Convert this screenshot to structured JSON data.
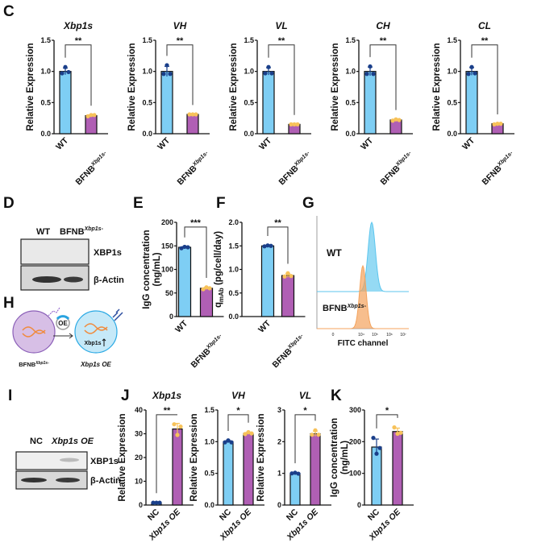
{
  "colors": {
    "wt_bar": "#7ecef4",
    "mut_bar": "#b05fb4",
    "wt_point": "#1a3f8a",
    "mut_point": "#f7c25a",
    "flow_wt": "#5cc6ee",
    "flow_mut": "#f4a35c"
  },
  "panels": {
    "C": "C",
    "D": "D",
    "E": "E",
    "F": "F",
    "G": "G",
    "H": "H",
    "I": "I",
    "J": "J",
    "K": "K"
  },
  "blot_D": {
    "lanes": [
      "WT",
      "BFNB"
    ],
    "lane2_sup": "Xbp1s-",
    "bands": [
      "XBP1s",
      "β-Actin"
    ]
  },
  "blot_I": {
    "lanes": [
      "NC",
      "Xbp1s OE"
    ],
    "bands": [
      "XBP1s",
      "β-Actin"
    ]
  },
  "diagram_H": {
    "left_label": "BFNB",
    "left_sup": "Xbp1s-",
    "right_label": "Xbp1s OE",
    "oe_label": "OE",
    "gene_label": "Xbp1s"
  },
  "flow_G": {
    "labels": [
      "WT",
      "BFNB"
    ],
    "sup": "Xbp1s-",
    "xlabel": "FITC channel",
    "ticks": [
      "0",
      "10⁴",
      "10⁵",
      "10⁶",
      "10⁷"
    ]
  },
  "chart_data": [
    {
      "id": "C1",
      "type": "bar",
      "title": "Xbp1s",
      "ylabel": "Relative Expression",
      "ylim": [
        0,
        1.5
      ],
      "yticks": [
        "0.0",
        "0.5",
        "1.0",
        "1.5"
      ],
      "categories": [
        {
          "label": "WT"
        },
        {
          "label": "BFNB",
          "sup": "Xbp1s-"
        }
      ],
      "values": [
        1.0,
        0.29
      ],
      "points": [
        [
          0.97,
          1.07,
          0.99
        ],
        [
          0.28,
          0.3,
          0.3
        ]
      ],
      "significance": "**"
    },
    {
      "id": "C2",
      "type": "bar",
      "title": "VH",
      "ylabel": "Relative Expression",
      "ylim": [
        0,
        1.5
      ],
      "yticks": [
        "0.0",
        "0.5",
        "1.0",
        "1.5"
      ],
      "categories": [
        {
          "label": "WT"
        },
        {
          "label": "BFNB",
          "sup": "Xbp1s-"
        }
      ],
      "values": [
        1.0,
        0.31
      ],
      "points": [
        [
          0.96,
          1.1,
          0.96
        ],
        [
          0.31,
          0.31,
          0.31
        ]
      ],
      "significance": "**"
    },
    {
      "id": "C3",
      "type": "bar",
      "title": "VL",
      "ylabel": "Relative Expression",
      "ylim": [
        0,
        1.5
      ],
      "yticks": [
        "0.0",
        "0.5",
        "1.0",
        "1.5"
      ],
      "categories": [
        {
          "label": "WT"
        },
        {
          "label": "BFNB",
          "sup": "Xbp1s-"
        }
      ],
      "values": [
        1.0,
        0.15
      ],
      "points": [
        [
          0.97,
          1.07,
          0.97
        ],
        [
          0.15,
          0.15,
          0.15
        ]
      ],
      "significance": "**"
    },
    {
      "id": "C4",
      "type": "bar",
      "title": "CH",
      "ylabel": "Relative Expression",
      "ylim": [
        0,
        1.5
      ],
      "yticks": [
        "0.0",
        "0.5",
        "1.0",
        "1.5"
      ],
      "categories": [
        {
          "label": "WT"
        },
        {
          "label": "BFNB",
          "sup": "Xbp1s-"
        }
      ],
      "values": [
        1.0,
        0.22
      ],
      "points": [
        [
          0.96,
          1.08,
          0.96
        ],
        [
          0.21,
          0.23,
          0.22
        ]
      ],
      "significance": "**"
    },
    {
      "id": "C5",
      "type": "bar",
      "title": "CL",
      "ylabel": "Relative Expression",
      "ylim": [
        0,
        1.5
      ],
      "yticks": [
        "0.0",
        "0.5",
        "1.0",
        "1.5"
      ],
      "categories": [
        {
          "label": "WT"
        },
        {
          "label": "BFNB",
          "sup": "Xbp1s-"
        }
      ],
      "values": [
        1.0,
        0.16
      ],
      "points": [
        [
          0.96,
          1.07,
          0.97
        ],
        [
          0.15,
          0.16,
          0.16
        ]
      ],
      "significance": "**"
    },
    {
      "id": "E",
      "type": "bar",
      "title": "",
      "ylabel": "IgG concentration",
      "ylabel2": "(ng/mL)",
      "ylim": [
        0,
        200
      ],
      "yticks": [
        "0",
        "50",
        "100",
        "150",
        "200"
      ],
      "categories": [
        {
          "label": "WT"
        },
        {
          "label": "BFNB",
          "sup": "Xbp1s-"
        }
      ],
      "values": [
        147,
        60
      ],
      "points": [
        [
          145,
          148,
          147
        ],
        [
          58,
          62,
          60
        ]
      ],
      "significance": "***"
    },
    {
      "id": "F",
      "type": "bar",
      "title": "",
      "ylabel": "q",
      "ylabel_sub": "mAb",
      "ylabel_rest": " (pg/cell/day)",
      "ylim": [
        0,
        2.0
      ],
      "yticks": [
        "0.0",
        "0.5",
        "1.0",
        "1.5",
        "2.0"
      ],
      "categories": [
        {
          "label": "WT"
        },
        {
          "label": "BFNB",
          "sup": "Xbp1s-"
        }
      ],
      "values": [
        1.5,
        0.87
      ],
      "points": [
        [
          1.49,
          1.51,
          1.5
        ],
        [
          0.85,
          0.92,
          0.86
        ]
      ],
      "significance": "**"
    },
    {
      "id": "J1",
      "type": "bar",
      "title": "Xbp1s",
      "ylabel": "Relative Expression",
      "ylim": [
        0,
        40
      ],
      "yticks": [
        "0",
        "10",
        "20",
        "30",
        "40"
      ],
      "categories": [
        {
          "label": "NC"
        },
        {
          "label": "Xbp1s OE"
        }
      ],
      "values": [
        1,
        32
      ],
      "points": [
        [
          1,
          1,
          1
        ],
        [
          34,
          29.5,
          33
        ]
      ],
      "significance": "**"
    },
    {
      "id": "J2",
      "type": "bar",
      "title": "VH",
      "ylabel": "Relative Expression",
      "ylim": [
        0,
        1.5
      ],
      "yticks": [
        "0.0",
        "0.5",
        "1.0",
        "1.5"
      ],
      "categories": [
        {
          "label": "NC"
        },
        {
          "label": "Xbp1s OE"
        }
      ],
      "values": [
        1.0,
        1.13
      ],
      "points": [
        [
          0.99,
          1.02,
          0.99
        ],
        [
          1.12,
          1.15,
          1.13
        ]
      ],
      "significance": "*"
    },
    {
      "id": "J3",
      "type": "bar",
      "title": "VL",
      "ylabel": "Relative Expression",
      "ylim": [
        0,
        3
      ],
      "yticks": [
        "0",
        "1",
        "2",
        "3"
      ],
      "categories": [
        {
          "label": "NC"
        },
        {
          "label": "Xbp1s OE"
        }
      ],
      "values": [
        1.0,
        2.25
      ],
      "points": [
        [
          1.0,
          1.02,
          0.99
        ],
        [
          2.22,
          2.36,
          2.22
        ]
      ],
      "significance": "*"
    },
    {
      "id": "K",
      "type": "bar",
      "title": "",
      "ylabel": "IgG concentration",
      "ylabel2": "(ng/mL)",
      "ylim": [
        0,
        300
      ],
      "yticks": [
        "0",
        "100",
        "200",
        "300"
      ],
      "categories": [
        {
          "label": "NC"
        },
        {
          "label": "Xbp1s OE"
        }
      ],
      "values": [
        183,
        232
      ],
      "points": [
        [
          212,
          162,
          180
        ],
        [
          245,
          225,
          228
        ]
      ],
      "significance": "*"
    }
  ]
}
